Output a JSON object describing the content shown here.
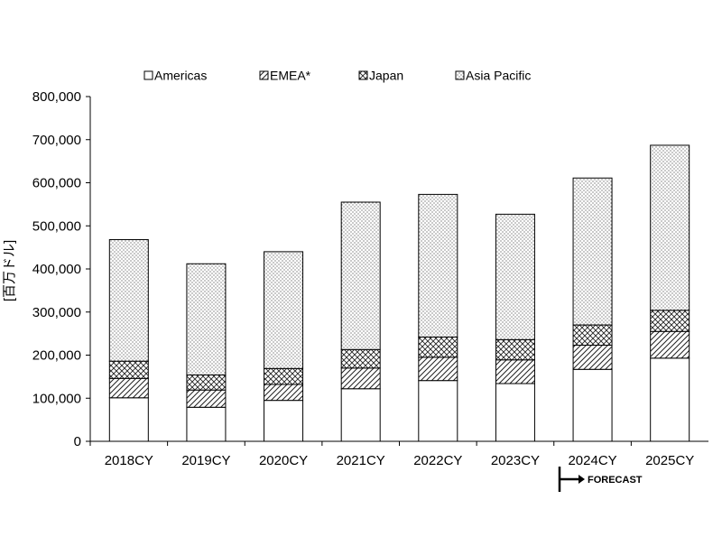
{
  "chart_data": {
    "type": "bar",
    "stacked": true,
    "categories": [
      "2018CY",
      "2019CY",
      "2020CY",
      "2021CY",
      "2022CY",
      "2023CY",
      "2024CY",
      "2025CY"
    ],
    "series": [
      {
        "name": "Americas",
        "pattern": "none",
        "values": [
          101000,
          79000,
          95000,
          122000,
          141000,
          134000,
          167000,
          193000
        ]
      },
      {
        "name": "EMEA*",
        "pattern": "diagonal",
        "values": [
          45000,
          40000,
          37000,
          48000,
          54000,
          55000,
          56000,
          62000
        ]
      },
      {
        "name": "Japan",
        "pattern": "crosshatch",
        "values": [
          40000,
          35000,
          37000,
          43000,
          47000,
          47000,
          47000,
          49000
        ]
      },
      {
        "name": "Asia Pacific",
        "pattern": "dots",
        "values": [
          282000,
          258000,
          271000,
          342000,
          331000,
          291000,
          341000,
          383000
        ]
      }
    ],
    "ylabel": "[百万ドル]",
    "ylim": [
      0,
      800000
    ],
    "yticks": [
      "0",
      "100,000",
      "200,000",
      "300,000",
      "400,000",
      "500,000",
      "600,000",
      "700,000",
      "800,000"
    ],
    "legend_position": "top",
    "annotation": {
      "text": "FORECAST",
      "start_category": "2024CY"
    },
    "colors": {
      "fill": "#ffffff",
      "stroke": "#000000",
      "pattern": "#333333"
    }
  }
}
